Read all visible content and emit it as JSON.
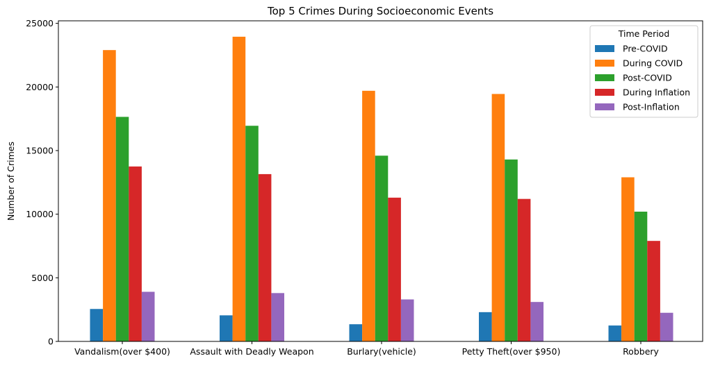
{
  "chart_data": {
    "type": "bar",
    "title": "Top 5 Crimes During Socioeconomic Events",
    "xlabel": "",
    "ylabel": "Number of Crimes",
    "ylim": [
      0,
      25200
    ],
    "yticks": [
      0,
      5000,
      10000,
      15000,
      20000,
      25000
    ],
    "categories": [
      "Vandalism(over $400)",
      "Assault with Deadly Weapon",
      "Burlary(vehicle)",
      "Petty Theft(over $950)",
      "Robbery"
    ],
    "series": [
      {
        "name": "Pre-COVID",
        "color": "#1f77b4",
        "values": [
          2550,
          2050,
          1350,
          2300,
          1250
        ]
      },
      {
        "name": "During COVID",
        "color": "#ff7f0e",
        "values": [
          22900,
          23950,
          19700,
          19450,
          12900
        ]
      },
      {
        "name": "Post-COVID",
        "color": "#2ca02c",
        "values": [
          17650,
          16950,
          14600,
          14300,
          10200
        ]
      },
      {
        "name": "During Inflation",
        "color": "#d62728",
        "values": [
          13750,
          13150,
          11300,
          11200,
          7900
        ]
      },
      {
        "name": "Post-Inflation",
        "color": "#9467bd",
        "values": [
          3900,
          3800,
          3300,
          3100,
          2250
        ]
      }
    ],
    "legend": {
      "title": "Time Period",
      "placement": "upper right"
    },
    "grid": false
  }
}
